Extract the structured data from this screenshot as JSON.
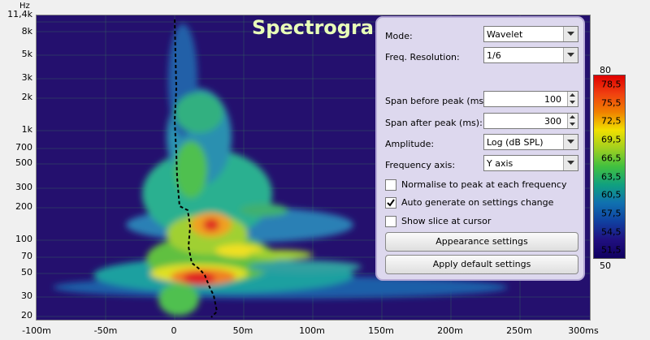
{
  "app": {
    "title": "Spectrogram"
  },
  "plot": {
    "y_unit": "Hz",
    "y_ticks": [
      "11,4k",
      "8k",
      "5k",
      "3k",
      "2k",
      "1k",
      "700",
      "500",
      "300",
      "200",
      "100",
      "70",
      "50",
      "30",
      "20"
    ],
    "x_ticks": [
      "-100m",
      "-50m",
      "0",
      "50m",
      "100m",
      "150m",
      "200m",
      "250m",
      "300ms"
    ]
  },
  "panel": {
    "mode_label": "Mode:",
    "mode_value": "Wavelet",
    "resolution_label": "Freq. Resolution:",
    "resolution_value": "1/6",
    "span_before_label": "Span before peak (ms):",
    "span_before_value": "100",
    "span_after_label": "Span after peak (ms):",
    "span_after_value": "300",
    "amplitude_label": "Amplitude:",
    "amplitude_value": "Log (dB SPL)",
    "freq_axis_label": "Frequency axis:",
    "freq_axis_value": "Y axis",
    "normalise_label": "Normalise to peak at each frequency",
    "normalise_checked": false,
    "autogen_label": "Auto generate on settings change",
    "autogen_checked": true,
    "slice_label": "Show slice at cursor",
    "slice_checked": false,
    "appearance_button": "Appearance settings",
    "defaults_button": "Apply default settings"
  },
  "colorbar": {
    "max": "80",
    "min": "50",
    "labels": [
      "78,5",
      "75,5",
      "72,5",
      "69,5",
      "66,5",
      "63,5",
      "60,5",
      "57,5",
      "54,5",
      "51,5"
    ]
  },
  "colors": {
    "background": "#24106e",
    "panel": "#ddd8ee",
    "title": "#e8ffb8"
  }
}
